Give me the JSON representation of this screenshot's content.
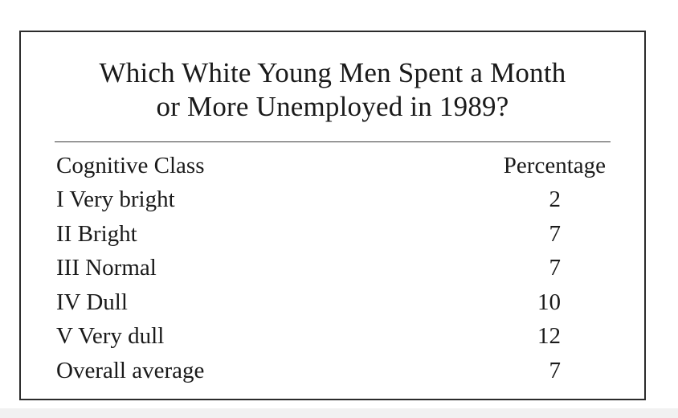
{
  "chart_data": {
    "type": "table",
    "title": "Which White Young Men Spent a Month or More Unemployed in 1989?",
    "title_lines": [
      "Which White Young Men Spent a Month",
      "or More Unemployed in 1989?"
    ],
    "columns": [
      "Cognitive Class",
      "Percentage"
    ],
    "rows": [
      {
        "class": "I Very bright",
        "percentage": "2"
      },
      {
        "class": "II Bright",
        "percentage": "7"
      },
      {
        "class": "III Normal",
        "percentage": "7"
      },
      {
        "class": "IV Dull",
        "percentage": "10"
      },
      {
        "class": "V Very dull",
        "percentage": "12"
      },
      {
        "class": "Overall average",
        "percentage": "7"
      }
    ],
    "categories": [
      "I Very bright",
      "II Bright",
      "III Normal",
      "IV Dull",
      "V Very dull",
      "Overall average"
    ],
    "values": [
      2,
      7,
      7,
      10,
      12,
      7
    ]
  }
}
